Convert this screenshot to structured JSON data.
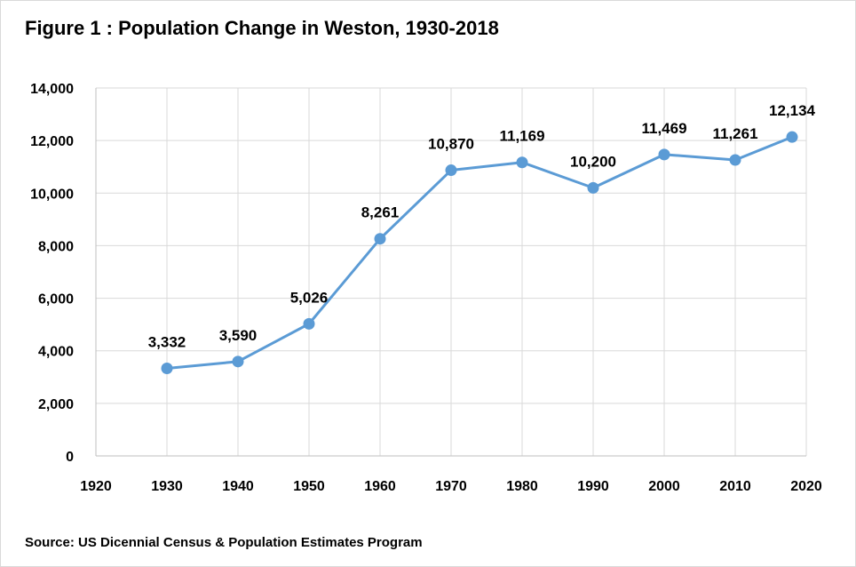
{
  "chart_data": {
    "type": "line",
    "title": "Figure 1 : Population Change in Weston, 1930-2018",
    "source": "Source: US Dicennial Census & Population Estimates Program",
    "x": [
      1930,
      1940,
      1950,
      1960,
      1970,
      1980,
      1990,
      2000,
      2010,
      2018
    ],
    "series": [
      {
        "values": [
          3332,
          3590,
          5026,
          8261,
          10870,
          11169,
          10200,
          11469,
          11261,
          12134
        ]
      }
    ],
    "data_labels": [
      "3,332",
      "3,590",
      "5,026",
      "8,261",
      "10,870",
      "11,169",
      "10,200",
      "11,469",
      "11,261",
      "12,134"
    ],
    "xlim": [
      1920,
      2020
    ],
    "ylim": [
      0,
      14000
    ],
    "x_ticks": [
      "1920",
      "1930",
      "1940",
      "1950",
      "1960",
      "1970",
      "1980",
      "1990",
      "2000",
      "2010",
      "2020"
    ],
    "y_ticks": [
      "0",
      "2,000",
      "4,000",
      "6,000",
      "8,000",
      "10,000",
      "12,000",
      "14,000"
    ],
    "xlabel": "",
    "ylabel": "",
    "grid": true,
    "line_color": "#5b9bd5",
    "grid_color": "#d9d9d9"
  }
}
